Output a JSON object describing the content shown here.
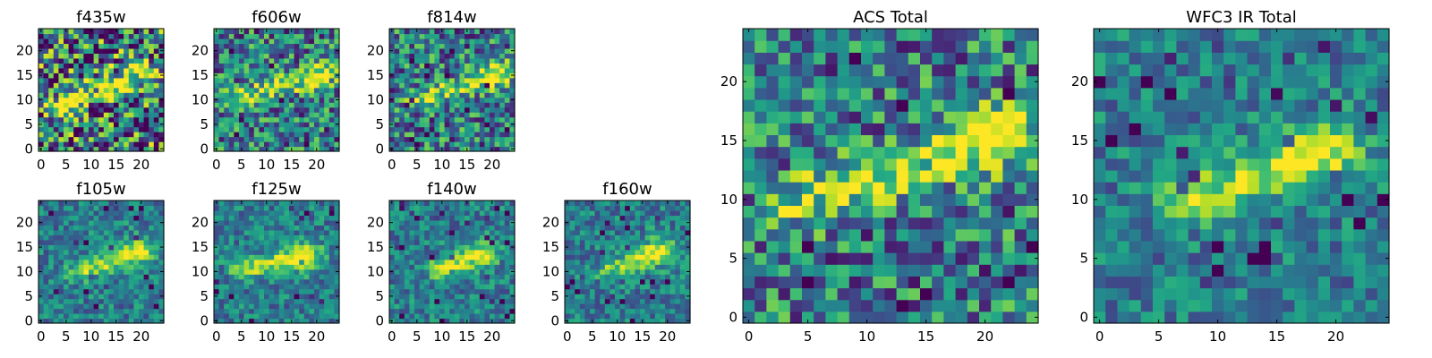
{
  "figure": {
    "colormap": "viridis",
    "grid": false,
    "pixel_grid": [
      25,
      25
    ]
  },
  "chart_data": [
    {
      "type": "heatmap",
      "title": "f435w",
      "xlim": [
        0,
        24
      ],
      "ylim": [
        0,
        24
      ],
      "xticks": [
        0,
        5,
        10,
        15,
        20
      ],
      "yticks": [
        0,
        5,
        10,
        15,
        20
      ],
      "signal": [
        {
          "x": 19,
          "y": 15
        },
        {
          "x": 6,
          "y": 10
        }
      ],
      "noise": "high"
    },
    {
      "type": "heatmap",
      "title": "f606w",
      "xlim": [
        0,
        24
      ],
      "ylim": [
        0,
        24
      ],
      "xticks": [
        0,
        5,
        10,
        15,
        20
      ],
      "yticks": [
        0,
        5,
        10,
        15,
        20
      ],
      "signal": [
        {
          "x": 20,
          "y": 15
        },
        {
          "x": 7,
          "y": 11
        }
      ],
      "noise": "medium"
    },
    {
      "type": "heatmap",
      "title": "f814w",
      "xlim": [
        0,
        24
      ],
      "ylim": [
        0,
        24
      ],
      "xticks": [
        0,
        5,
        10,
        15,
        20
      ],
      "yticks": [
        0,
        5,
        10,
        15,
        20
      ],
      "signal": [
        {
          "x": 20,
          "y": 15
        },
        {
          "x": 8,
          "y": 11
        }
      ],
      "noise": "medium"
    },
    {
      "type": "heatmap",
      "title": "f105w",
      "xlim": [
        0,
        24
      ],
      "ylim": [
        0,
        24
      ],
      "xticks": [
        0,
        5,
        10,
        15,
        20
      ],
      "yticks": [
        0,
        5,
        10,
        15,
        20
      ],
      "signal": [
        {
          "x": 19,
          "y": 14
        },
        {
          "x": 10,
          "y": 11
        }
      ],
      "noise": "low"
    },
    {
      "type": "heatmap",
      "title": "f125w",
      "xlim": [
        0,
        24
      ],
      "ylim": [
        0,
        24
      ],
      "xticks": [
        0,
        5,
        10,
        15,
        20
      ],
      "yticks": [
        0,
        5,
        10,
        15,
        20
      ],
      "signal": [
        {
          "x": 17,
          "y": 13
        },
        {
          "x": 8,
          "y": 11
        }
      ],
      "noise": "low"
    },
    {
      "type": "heatmap",
      "title": "f140w",
      "xlim": [
        0,
        24
      ],
      "ylim": [
        0,
        24
      ],
      "xticks": [
        0,
        5,
        10,
        15,
        20
      ],
      "yticks": [
        0,
        5,
        10,
        15,
        20
      ],
      "signal": [
        {
          "x": 17,
          "y": 13
        },
        {
          "x": 11,
          "y": 11
        }
      ],
      "noise": "low"
    },
    {
      "type": "heatmap",
      "title": "f160w",
      "xlim": [
        0,
        24
      ],
      "ylim": [
        0,
        24
      ],
      "xticks": [
        0,
        5,
        10,
        15,
        20
      ],
      "yticks": [
        0,
        5,
        10,
        15,
        20
      ],
      "signal": [
        {
          "x": 18,
          "y": 14
        },
        {
          "x": 11,
          "y": 11
        }
      ],
      "noise": "low"
    },
    {
      "type": "heatmap",
      "title": "ACS Total",
      "xlim": [
        0,
        24
      ],
      "ylim": [
        0,
        24
      ],
      "xticks": [
        0,
        5,
        10,
        15,
        20
      ],
      "yticks": [
        0,
        5,
        10,
        15,
        20
      ],
      "signal": [
        {
          "x": 20,
          "y": 15
        },
        {
          "x": 8,
          "y": 11
        }
      ],
      "noise": "medium"
    },
    {
      "type": "heatmap",
      "title": "WFC3 IR Total",
      "xlim": [
        0,
        24
      ],
      "ylim": [
        0,
        24
      ],
      "xticks": [
        0,
        5,
        10,
        15,
        20
      ],
      "yticks": [
        0,
        5,
        10,
        15,
        20
      ],
      "signal": [
        {
          "x": 18,
          "y": 14
        },
        {
          "x": 10,
          "y": 11
        }
      ],
      "noise": "low"
    }
  ]
}
